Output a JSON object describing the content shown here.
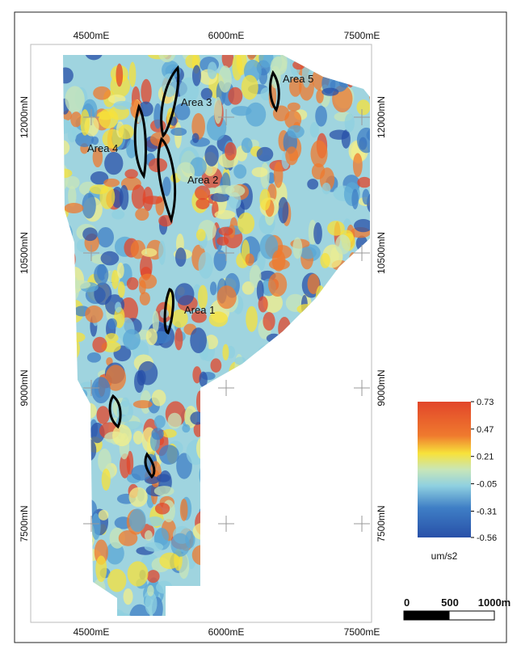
{
  "map": {
    "eastings": [
      "4500mE",
      "6000mE",
      "7500mE"
    ],
    "northings": [
      "12000mN",
      "10500mN",
      "9000mN",
      "7500mN"
    ],
    "areas": [
      "Area 1",
      "Area 2",
      "Area 3",
      "Area 4",
      "Area 5"
    ]
  },
  "colorbar": {
    "ticks": [
      0.73,
      0.47,
      0.21,
      -0.05,
      -0.31,
      -0.56
    ],
    "unit": "um/s2"
  },
  "scale_bar": {
    "labels": [
      "0",
      "500",
      "1000m"
    ]
  }
}
